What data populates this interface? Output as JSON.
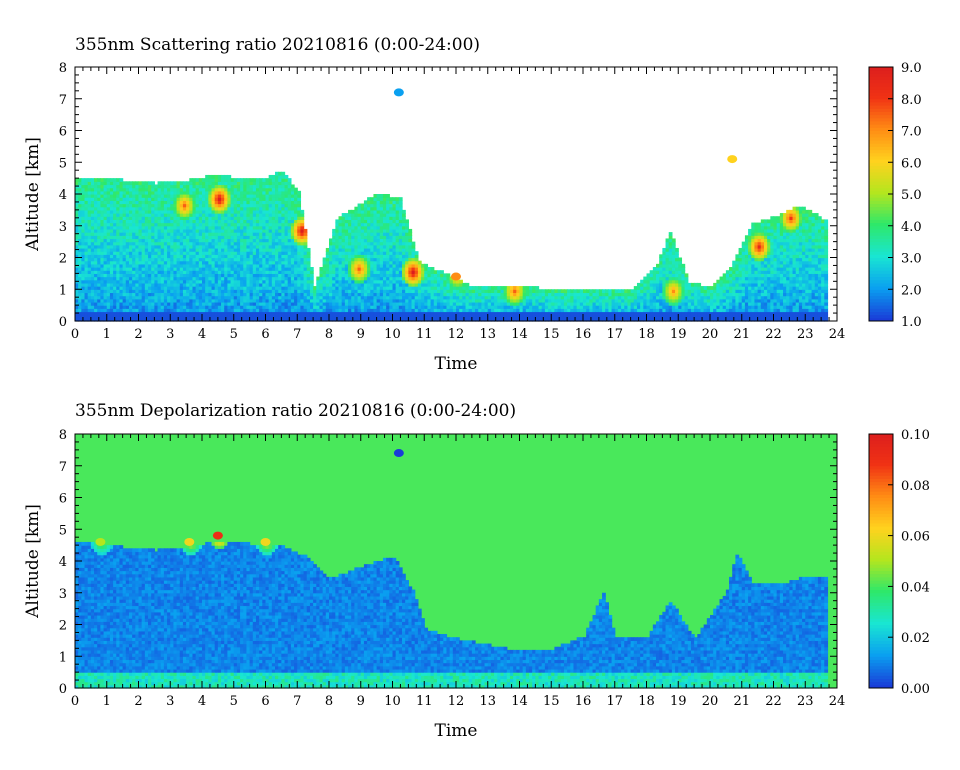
{
  "chart_data": [
    {
      "type": "heatmap",
      "title": "355nm Scattering ratio  20210816 (0:00-24:00)",
      "xlabel": "Time",
      "ylabel": "Altitude [km]",
      "xlim": [
        0,
        24
      ],
      "ylim": [
        0,
        8
      ],
      "x_ticks": [
        "0",
        "1",
        "2",
        "3",
        "4",
        "5",
        "6",
        "7",
        "8",
        "9",
        "10",
        "11",
        "12",
        "13",
        "14",
        "15",
        "16",
        "17",
        "18",
        "19",
        "20",
        "21",
        "22",
        "23",
        "24"
      ],
      "y_ticks": [
        "0",
        "1",
        "2",
        "3",
        "4",
        "5",
        "6",
        "7",
        "8"
      ],
      "colorbar": {
        "range": [
          1.0,
          9.0
        ],
        "ticks": [
          "1.0",
          "2.0",
          "3.0",
          "4.0",
          "5.0",
          "6.0",
          "7.0",
          "8.0",
          "9.0"
        ],
        "colors": [
          "#1a3cd8",
          "#0aa0f0",
          "#19e6d2",
          "#2ee86a",
          "#b4e61e",
          "#ffd21e",
          "#ff8c14",
          "#f03214",
          "#dc1e1e"
        ]
      },
      "background": "#ffffff",
      "layer_top_km": [
        [
          0,
          4.5
        ],
        [
          1.5,
          4.4
        ],
        [
          2.5,
          4.3
        ],
        [
          3.5,
          4.4
        ],
        [
          4.5,
          4.6
        ],
        [
          5.2,
          4.4
        ],
        [
          6.0,
          4.5
        ],
        [
          6.5,
          4.7
        ],
        [
          7.0,
          4.0
        ],
        [
          7.5,
          1.0
        ],
        [
          8.2,
          3.2
        ],
        [
          8.7,
          3.5
        ],
        [
          9.5,
          4.0
        ],
        [
          10.2,
          3.8
        ],
        [
          10.8,
          1.8
        ],
        [
          11.5,
          1.5
        ],
        [
          12.5,
          1.0
        ],
        [
          13.5,
          1.1
        ],
        [
          14.5,
          1.0
        ],
        [
          15.5,
          0.9
        ],
        [
          16.5,
          1.0
        ],
        [
          17.5,
          0.9
        ],
        [
          18.3,
          1.8
        ],
        [
          18.7,
          2.8
        ],
        [
          19.3,
          1.2
        ],
        [
          20.0,
          1.0
        ],
        [
          20.7,
          1.8
        ],
        [
          21.3,
          3.0
        ],
        [
          22.2,
          3.3
        ],
        [
          22.8,
          3.6
        ],
        [
          23.5,
          3.2
        ],
        [
          23.9,
          3.1
        ]
      ],
      "hotspots": [
        {
          "t": 4.5,
          "z": 3.8,
          "v": 9.0
        },
        {
          "t": 7.1,
          "z": 2.8,
          "v": 9.0
        },
        {
          "t": 3.4,
          "z": 3.6,
          "v": 7.5
        },
        {
          "t": 10.6,
          "z": 1.5,
          "v": 9.0
        },
        {
          "t": 8.9,
          "z": 1.6,
          "v": 7.5
        },
        {
          "t": 12.0,
          "z": 1.4,
          "v": 7.0
        },
        {
          "t": 13.8,
          "z": 0.9,
          "v": 7.5
        },
        {
          "t": 18.8,
          "z": 0.9,
          "v": 7.0
        },
        {
          "t": 22.5,
          "z": 3.2,
          "v": 8.0
        },
        {
          "t": 21.5,
          "z": 2.3,
          "v": 8.5
        },
        {
          "t": 10.2,
          "z": 7.2,
          "v": 2.0
        },
        {
          "t": 20.7,
          "z": 5.1,
          "v": 6.0
        }
      ]
    },
    {
      "type": "heatmap",
      "title": "355nm Depolarization ratio  20210816 (0:00-24:00)",
      "xlabel": "Time",
      "ylabel": "Altitude [km]",
      "xlim": [
        0,
        24
      ],
      "ylim": [
        0,
        8
      ],
      "x_ticks": [
        "0",
        "1",
        "2",
        "3",
        "4",
        "5",
        "6",
        "7",
        "8",
        "9",
        "10",
        "11",
        "12",
        "13",
        "14",
        "15",
        "16",
        "17",
        "18",
        "19",
        "20",
        "21",
        "22",
        "23",
        "24"
      ],
      "y_ticks": [
        "0",
        "1",
        "2",
        "3",
        "4",
        "5",
        "6",
        "7",
        "8"
      ],
      "colorbar": {
        "range": [
          0.0,
          0.1
        ],
        "ticks": [
          "0.00",
          "0.02",
          "0.04",
          "0.06",
          "0.08",
          "0.10"
        ],
        "colors": [
          "#1a3cd8",
          "#0aa0f0",
          "#19e6d2",
          "#2ee86a",
          "#b4e61e",
          "#ffd21e",
          "#ff8c14",
          "#f03214",
          "#dc1e1e"
        ]
      },
      "background_value": 0.04,
      "layer_top_km": [
        [
          0,
          4.6
        ],
        [
          1.5,
          4.4
        ],
        [
          2.5,
          4.3
        ],
        [
          3.5,
          4.4
        ],
        [
          4.5,
          4.6
        ],
        [
          5.5,
          4.5
        ],
        [
          6.5,
          4.4
        ],
        [
          7.2,
          4.1
        ],
        [
          8.0,
          3.4
        ],
        [
          9.0,
          3.8
        ],
        [
          10.0,
          4.1
        ],
        [
          10.6,
          3.0
        ],
        [
          11.0,
          1.8
        ],
        [
          12.0,
          1.5
        ],
        [
          13.0,
          1.3
        ],
        [
          14.0,
          1.1
        ],
        [
          15.0,
          1.2
        ],
        [
          16.0,
          1.6
        ],
        [
          16.6,
          3.0
        ],
        [
          17.0,
          1.5
        ],
        [
          18.0,
          1.6
        ],
        [
          18.7,
          2.7
        ],
        [
          19.5,
          1.5
        ],
        [
          20.5,
          3.0
        ],
        [
          20.8,
          4.2
        ],
        [
          21.3,
          3.3
        ],
        [
          22.2,
          3.2
        ],
        [
          23.0,
          3.5
        ],
        [
          23.9,
          3.5
        ]
      ],
      "hotspots": [
        {
          "t": 4.5,
          "z": 4.8,
          "v": 0.09
        },
        {
          "t": 0.8,
          "z": 4.6,
          "v": 0.05
        },
        {
          "t": 3.6,
          "z": 4.6,
          "v": 0.06
        },
        {
          "t": 6.0,
          "z": 4.6,
          "v": 0.06
        },
        {
          "t": 10.2,
          "z": 7.4,
          "v": 0.0
        }
      ]
    }
  ]
}
